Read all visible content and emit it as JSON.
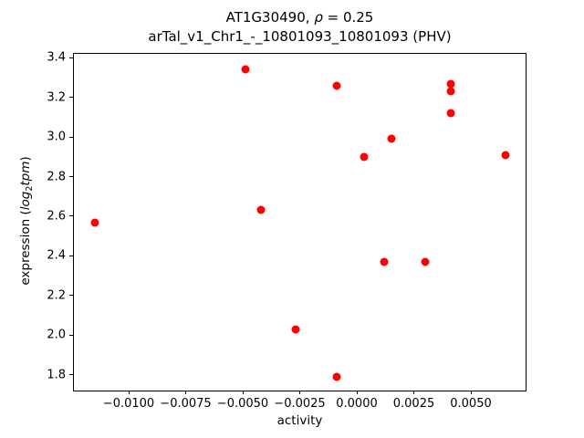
{
  "figure": {
    "title_line1": {
      "prefix": "AT1G30490, ",
      "rho": "ρ",
      "suffix": " = 0.25"
    },
    "title_line2": "arTal_v1_Chr1_-_10801093_10801093 (PHV)"
  },
  "axes": {
    "xlabel": "activity",
    "ylabel_parts": {
      "prefix": "expression (",
      "log": "log",
      "sub": "2",
      "tpm": "tpm",
      "suffix": ")"
    }
  },
  "chart_data": {
    "type": "scatter",
    "title": "AT1G30490, ρ = 0.25\narTal_v1_Chr1_-_10801093_10801093 (PHV)",
    "xlabel": "activity",
    "ylabel": "expression (log2tpm)",
    "marker": "circle",
    "marker_color": "#ff0000",
    "marker_size_px": 9,
    "grid": false,
    "legend": null,
    "xlim": [
      -0.0124,
      0.0074
    ],
    "ylim": [
      1.72,
      3.42
    ],
    "x_ticks": [
      -0.01,
      -0.0075,
      -0.005,
      -0.0025,
      0.0,
      0.0025,
      0.005
    ],
    "x_tick_labels": [
      "−0.0100",
      "−0.0075",
      "−0.0050",
      "−0.0025",
      "0.0000",
      "0.0025",
      "0.0050"
    ],
    "y_ticks": [
      1.8,
      2.0,
      2.2,
      2.4,
      2.6,
      2.8,
      3.0,
      3.2,
      3.4
    ],
    "y_tick_labels": [
      "1.8",
      "2.0",
      "2.2",
      "2.4",
      "2.6",
      "2.8",
      "3.0",
      "3.2",
      "3.4"
    ],
    "points": [
      {
        "x": -0.0115,
        "y": 2.57
      },
      {
        "x": -0.0049,
        "y": 3.34
      },
      {
        "x": -0.0042,
        "y": 2.63
      },
      {
        "x": -0.0027,
        "y": 2.03
      },
      {
        "x": -0.0009,
        "y": 3.26
      },
      {
        "x": -0.0009,
        "y": 1.79
      },
      {
        "x": 0.0003,
        "y": 2.9
      },
      {
        "x": 0.0012,
        "y": 2.37
      },
      {
        "x": 0.0015,
        "y": 2.99
      },
      {
        "x": 0.003,
        "y": 2.37
      },
      {
        "x": 0.0041,
        "y": 3.27
      },
      {
        "x": 0.0041,
        "y": 3.23
      },
      {
        "x": 0.0041,
        "y": 3.12
      },
      {
        "x": 0.0065,
        "y": 2.91
      }
    ]
  }
}
